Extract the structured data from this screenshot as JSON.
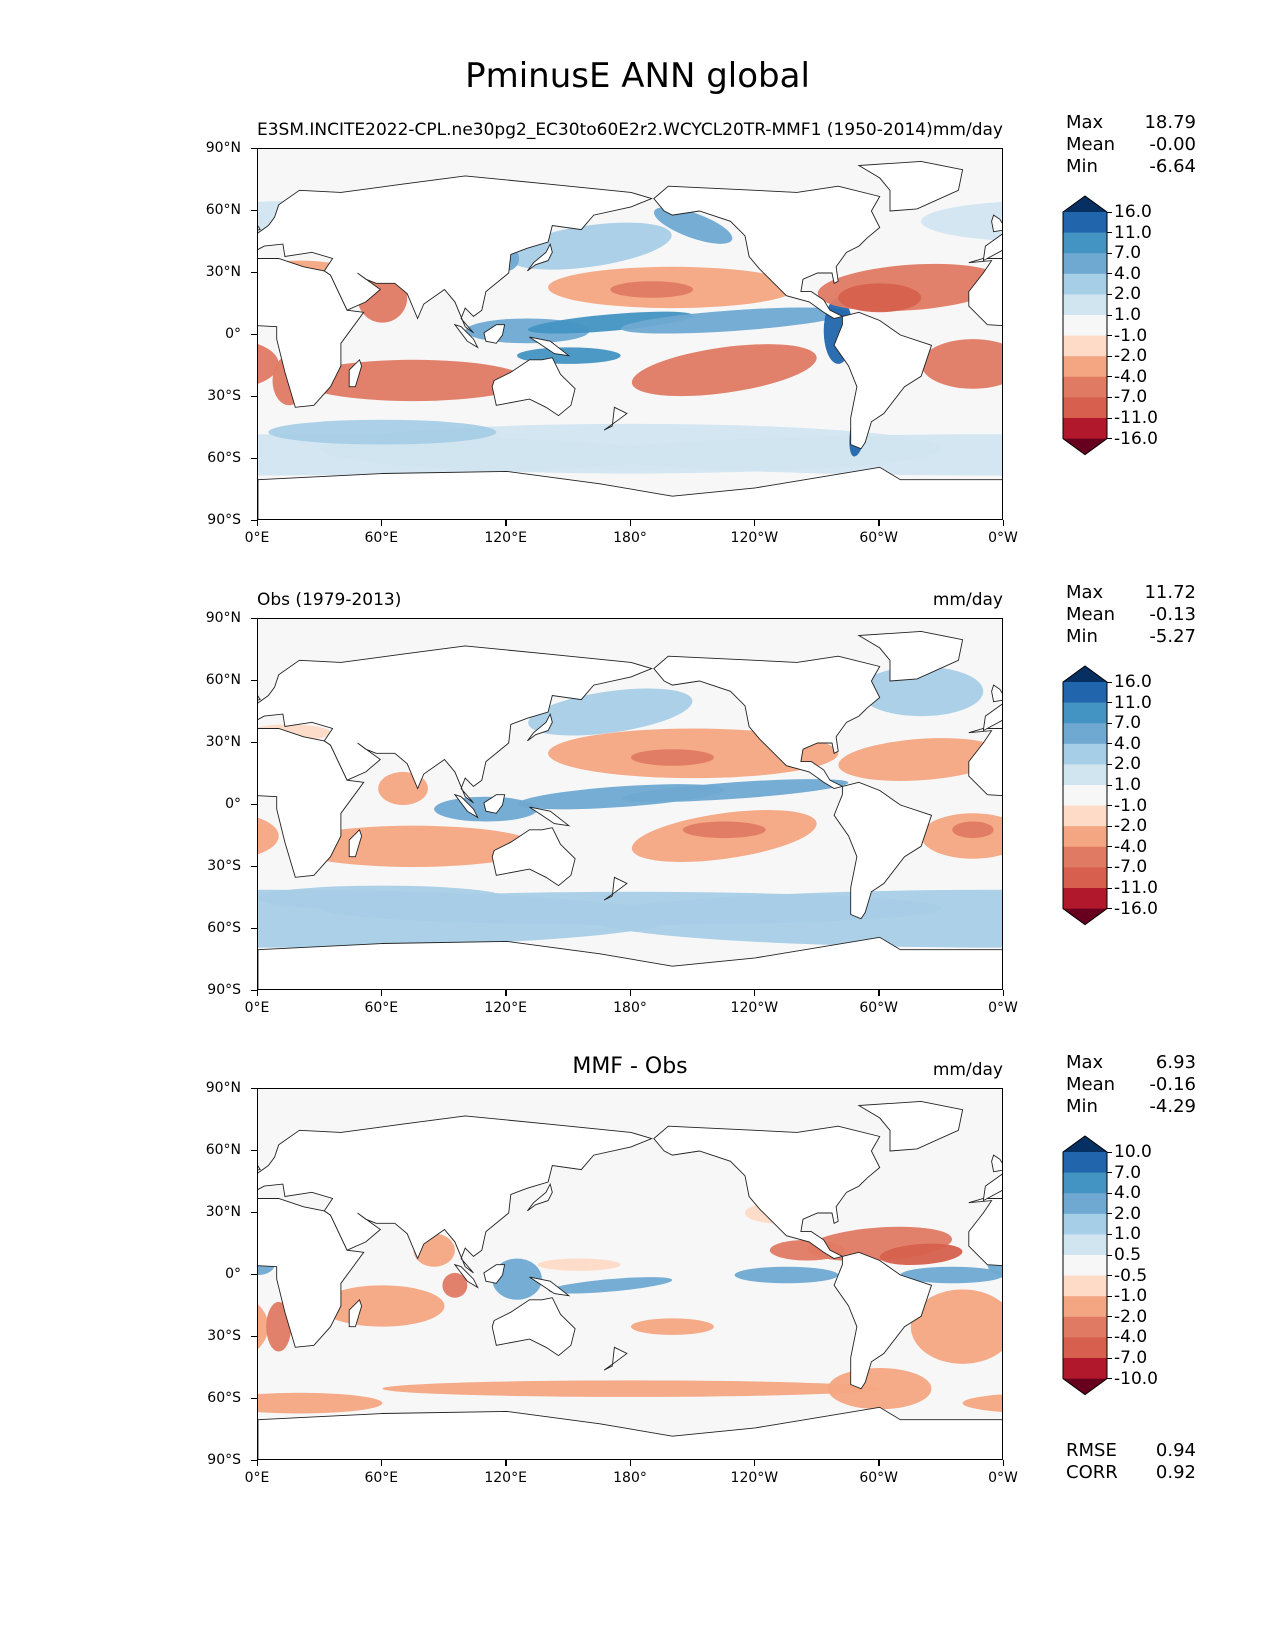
{
  "figure": {
    "title": "PminusE ANN global"
  },
  "axes": {
    "lat_ticks": [
      "90°N",
      "60°N",
      "30°N",
      "0°",
      "30°S",
      "60°S",
      "90°S"
    ],
    "lon_ticks": [
      "0°E",
      "60°E",
      "120°E",
      "180°",
      "120°W",
      "60°W",
      "0°W"
    ]
  },
  "panels": [
    {
      "id": "model",
      "title_left": "E3SM.INCITE2022-CPL.ne30pg2_EC30to60E2r2.WCYCL20TR-MMF1 (1950-2014)",
      "title_center": "",
      "units": "mm/day",
      "stats": [
        {
          "label": "Max",
          "value": "18.79"
        },
        {
          "label": "Mean",
          "value": "-0.00"
        },
        {
          "label": "Min",
          "value": "-6.64"
        }
      ],
      "colorbar": {
        "levels": [
          "16.0",
          "11.0",
          "7.0",
          "4.0",
          "2.0",
          "1.0",
          "-1.0",
          "-2.0",
          "-4.0",
          "-7.0",
          "-11.0",
          "-16.0"
        ],
        "colors": [
          "#053061",
          "#2166ac",
          "#4393c3",
          "#6fa9d2",
          "#a6cee6",
          "#d1e5f0",
          "#f7f7f7",
          "#fddbc7",
          "#f4a582",
          "#e07a63",
          "#d6604d",
          "#b2182b",
          "#67001f"
        ]
      },
      "metrics": []
    },
    {
      "id": "obs",
      "title_left": "Obs (1979-2013)",
      "title_center": "",
      "units": "mm/day",
      "stats": [
        {
          "label": "Max",
          "value": "11.72"
        },
        {
          "label": "Mean",
          "value": "-0.13"
        },
        {
          "label": "Min",
          "value": "-5.27"
        }
      ],
      "colorbar": {
        "levels": [
          "16.0",
          "11.0",
          "7.0",
          "4.0",
          "2.0",
          "1.0",
          "-1.0",
          "-2.0",
          "-4.0",
          "-7.0",
          "-11.0",
          "-16.0"
        ],
        "colors": [
          "#053061",
          "#2166ac",
          "#4393c3",
          "#6fa9d2",
          "#a6cee6",
          "#d1e5f0",
          "#f7f7f7",
          "#fddbc7",
          "#f4a582",
          "#e07a63",
          "#d6604d",
          "#b2182b",
          "#67001f"
        ]
      },
      "metrics": []
    },
    {
      "id": "diff",
      "title_left": "",
      "title_center": "MMF - Obs",
      "units": "mm/day",
      "stats": [
        {
          "label": "Max",
          "value": "6.93"
        },
        {
          "label": "Mean",
          "value": "-0.16"
        },
        {
          "label": "Min",
          "value": "-4.29"
        }
      ],
      "colorbar": {
        "levels": [
          "10.0",
          "7.0",
          "4.0",
          "2.0",
          "1.0",
          "0.5",
          "-0.5",
          "-1.0",
          "-2.0",
          "-4.0",
          "-7.0",
          "-10.0"
        ],
        "colors": [
          "#053061",
          "#2166ac",
          "#4393c3",
          "#6fa9d2",
          "#a6cee6",
          "#d1e5f0",
          "#f7f7f7",
          "#fddbc7",
          "#f4a582",
          "#e07a63",
          "#d6604d",
          "#b2182b",
          "#67001f"
        ]
      },
      "metrics": [
        {
          "label": "RMSE",
          "value": "0.94"
        },
        {
          "label": "CORR",
          "value": "0.92"
        }
      ]
    }
  ]
}
